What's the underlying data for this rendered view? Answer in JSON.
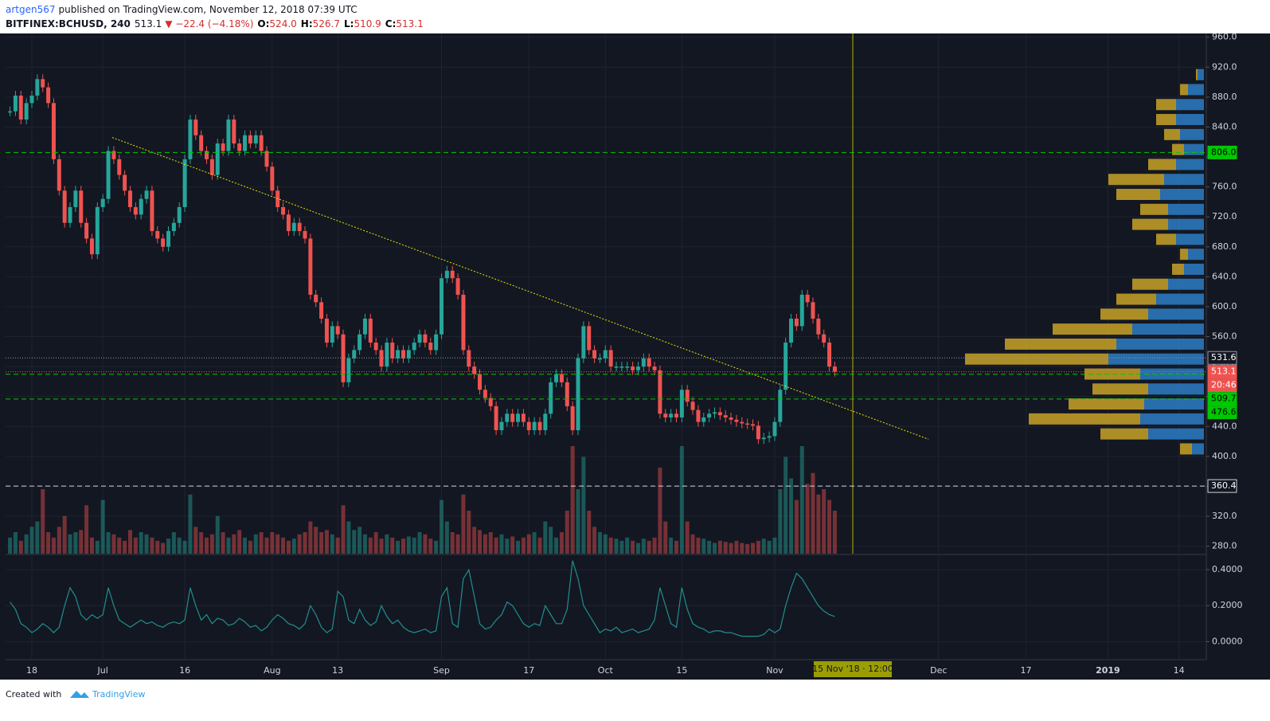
{
  "header": {
    "author": "artgen567",
    "published": "published on TradingView.com, November 12, 2018 07:39 UTC",
    "symbol": "BITFINEX:BCHUSD, 240",
    "last": "513.1",
    "change": "▼ −22.4 (−4.18%)",
    "ohlc": [
      {
        "key": "O:",
        "value": "524.0"
      },
      {
        "key": "H:",
        "value": "526.7"
      },
      {
        "key": "L:",
        "value": "510.9"
      },
      {
        "key": "C:",
        "value": "513.1"
      }
    ]
  },
  "footer": {
    "text": "Created with",
    "brand": "TradingView"
  },
  "chart_data": {
    "type": "candlestick",
    "up_color": "#26a69a",
    "down_color": "#ef5350",
    "categories": [
      null,
      null,
      null,
      null,
      "18",
      null,
      null,
      null,
      null,
      null,
      null,
      null,
      null,
      null,
      null,
      null,
      null,
      "Jul",
      null,
      null,
      null,
      null,
      null,
      null,
      null,
      null,
      null,
      null,
      null,
      null,
      null,
      null,
      "16",
      null,
      null,
      null,
      null,
      null,
      null,
      null,
      null,
      null,
      null,
      null,
      null,
      null,
      null,
      null,
      "Aug",
      null,
      null,
      null,
      null,
      null,
      null,
      null,
      null,
      null,
      null,
      null,
      "13",
      null,
      null,
      null,
      null,
      null,
      null,
      null,
      null,
      null,
      null,
      null,
      null,
      null,
      null,
      null,
      null,
      null,
      null,
      "Sep",
      null,
      null,
      null,
      null,
      null,
      null,
      null,
      null,
      null,
      null,
      null,
      null,
      null,
      null,
      null,
      "17",
      null,
      null,
      null,
      null,
      null,
      null,
      null,
      null,
      null,
      null,
      null,
      null,
      null,
      "Oct",
      null,
      null,
      null,
      null,
      null,
      null,
      null,
      null,
      null,
      null,
      null,
      null,
      null,
      "15",
      null,
      null,
      null,
      null,
      null,
      null,
      null,
      null,
      null,
      null,
      null,
      null,
      null,
      null,
      null,
      null,
      "Nov",
      null,
      null,
      null,
      null,
      null,
      null,
      null,
      null,
      null,
      null,
      null,
      null,
      null,
      null,
      null,
      null,
      null,
      null,
      null,
      null,
      null,
      null,
      null,
      null,
      null,
      null,
      null,
      null,
      null,
      "Dec",
      null,
      null,
      null,
      null,
      null,
      null,
      null,
      null,
      null,
      null,
      null,
      null,
      null,
      null,
      null,
      "17",
      null,
      null,
      null,
      null,
      null,
      null,
      null,
      null,
      null,
      null,
      null,
      null,
      null,
      null,
      "2019",
      null,
      null,
      null,
      null,
      null,
      null,
      null,
      null,
      null,
      null,
      null,
      null,
      "14",
      null,
      null
    ],
    "values": [
      861,
      882,
      850,
      872,
      882,
      904,
      893,
      872,
      797,
      755,
      712,
      733,
      755,
      712,
      691,
      670,
      733,
      744,
      808,
      797,
      776,
      755,
      733,
      723,
      744,
      755,
      701,
      691,
      680,
      701,
      712,
      733,
      797,
      850,
      829,
      808,
      797,
      776,
      818,
      808,
      850,
      818,
      808,
      829,
      818,
      829,
      808,
      787,
      755,
      733,
      723,
      701,
      712,
      701,
      691,
      616,
      606,
      584,
      552,
      574,
      563,
      499,
      531,
      542,
      563,
      584,
      552,
      542,
      520,
      552,
      531,
      542,
      531,
      542,
      552,
      563,
      552,
      542,
      563,
      638,
      648,
      638,
      616,
      542,
      520,
      510,
      489,
      478,
      467,
      435,
      446,
      457,
      446,
      457,
      446,
      435,
      446,
      435,
      457,
      499,
      510,
      499,
      467,
      435,
      531,
      574,
      542,
      531,
      531,
      542,
      520,
      520,
      520,
      520,
      515,
      520,
      531,
      520,
      515,
      457,
      452,
      457,
      452,
      489,
      473,
      462,
      446,
      452,
      457,
      459,
      455,
      452,
      449,
      446,
      444,
      443,
      441,
      423,
      425,
      427,
      446,
      489,
      552,
      584,
      574,
      616,
      606,
      584,
      563,
      552,
      520,
      513.1,
      null,
      null,
      null,
      null,
      null,
      null,
      null,
      null,
      null,
      null,
      null,
      null,
      null,
      null,
      null,
      null,
      null,
      null,
      null,
      null,
      null,
      null,
      null,
      null,
      null,
      null,
      null,
      null,
      null,
      null,
      null,
      null,
      null,
      null,
      null,
      null,
      null,
      null,
      null,
      null,
      null,
      null,
      null,
      null,
      null,
      null,
      null,
      null,
      null,
      null,
      null,
      null,
      null,
      null,
      null,
      null,
      null,
      null,
      null,
      null,
      null,
      null,
      null,
      null,
      null
    ],
    "volume": [
      15,
      20,
      12,
      18,
      25,
      30,
      60,
      20,
      15,
      25,
      35,
      18,
      20,
      22,
      45,
      15,
      12,
      50,
      20,
      18,
      15,
      12,
      22,
      15,
      20,
      18,
      15,
      12,
      10,
      14,
      20,
      15,
      12,
      55,
      25,
      20,
      15,
      18,
      35,
      20,
      15,
      18,
      22,
      15,
      12,
      18,
      20,
      15,
      20,
      18,
      15,
      12,
      14,
      18,
      20,
      30,
      25,
      20,
      22,
      18,
      15,
      45,
      30,
      22,
      25,
      18,
      15,
      20,
      14,
      18,
      15,
      12,
      14,
      16,
      15,
      20,
      18,
      14,
      12,
      50,
      30,
      20,
      18,
      55,
      40,
      25,
      22,
      18,
      20,
      15,
      18,
      14,
      16,
      12,
      15,
      18,
      20,
      15,
      30,
      25,
      15,
      20,
      40,
      100,
      60,
      90,
      40,
      25,
      20,
      18,
      15,
      14,
      12,
      15,
      12,
      10,
      14,
      12,
      15,
      80,
      30,
      15,
      12,
      100,
      30,
      18,
      15,
      14,
      12,
      10,
      12,
      11,
      10,
      12,
      10,
      9,
      10,
      12,
      14,
      12,
      15,
      60,
      90,
      70,
      50,
      100,
      65,
      75,
      55,
      60,
      50,
      40,
      null,
      null,
      null,
      null,
      null,
      null,
      null,
      null,
      null,
      null,
      null,
      null,
      null,
      null,
      null,
      null,
      null,
      null,
      null,
      null,
      null,
      null,
      null,
      null,
      null,
      null,
      null,
      null,
      null,
      null,
      null,
      null,
      null,
      null,
      null,
      null,
      null,
      null,
      null,
      null,
      null,
      null,
      null,
      null,
      null,
      null,
      null,
      null,
      null,
      null,
      null,
      null,
      null,
      null,
      null,
      null,
      null,
      null,
      null,
      null,
      null,
      null,
      null,
      null,
      null
    ],
    "ylim": [
      270,
      965
    ],
    "yticks": [
      {
        "value": 280,
        "label": "280.0"
      },
      {
        "value": 320,
        "label": "320.0"
      },
      {
        "value": 360,
        "label": "360.0"
      },
      {
        "value": 400,
        "label": "400.0"
      },
      {
        "value": 440,
        "label": "440.0"
      },
      {
        "value": 480,
        "label": "480.0"
      },
      {
        "value": 520,
        "label": "520.0"
      },
      {
        "value": 560,
        "label": "560.0"
      },
      {
        "value": 600,
        "label": "600.0"
      },
      {
        "value": 640,
        "label": "640.0"
      },
      {
        "value": 680,
        "label": "680.0"
      },
      {
        "value": 720,
        "label": "720.0"
      },
      {
        "value": 760,
        "label": "760.0"
      },
      {
        "value": 800,
        "label": "800.0"
      },
      {
        "value": 840,
        "label": "840.0"
      },
      {
        "value": 880,
        "label": "880.0"
      },
      {
        "value": 920,
        "label": "920.0"
      },
      {
        "value": 960,
        "label": "960.0"
      }
    ],
    "grid": true,
    "trendline": [
      826,
      423
    ],
    "trendline_color": "#e6e600",
    "cursor_label": "15 Nov '18 · 12:00",
    "cursor_color": "#b5b500",
    "levels": [
      {
        "value": 806,
        "label": "806.0",
        "color": "#00c800",
        "text_color": "#000000",
        "style": "dashed"
      },
      {
        "value": 531.6,
        "color": "#9598a1",
        "text_color": "#ffffff",
        "style": "dotted"
      },
      {
        "value": 513.1,
        "color": "#ef5350",
        "text_color": "#ffffff",
        "style": "dotted",
        "countdown": "20:46"
      },
      {
        "value": 509.7,
        "color": "#00c800",
        "text_color": "#000000",
        "style": "dashed"
      },
      {
        "value": 476.6,
        "color": "#00c800",
        "text_color": "#000000",
        "style": "dashed"
      },
      {
        "value": 360.4,
        "color": "#d1d4dc",
        "text_color": "#ffffff",
        "style": "dashed"
      }
    ],
    "volume_profile": {
      "prices": [
        410,
        430,
        450,
        470,
        490,
        510,
        530,
        550,
        570,
        590,
        610,
        630,
        650,
        670,
        690,
        710,
        730,
        750,
        770,
        790,
        810,
        830,
        850,
        870,
        890,
        910
      ],
      "up": [
        15,
        70,
        80,
        75,
        70,
        80,
        120,
        110,
        90,
        70,
        60,
        45,
        25,
        20,
        35,
        45,
        45,
        55,
        50,
        35,
        25,
        30,
        35,
        35,
        20,
        8
      ],
      "down": [
        15,
        60,
        140,
        95,
        70,
        70,
        180,
        140,
        100,
        60,
        50,
        45,
        15,
        10,
        25,
        45,
        35,
        55,
        70,
        35,
        15,
        20,
        25,
        25,
        10,
        2
      ],
      "up_color": "#2d7cc4",
      "down_color": "#c9a227"
    },
    "indicator": {
      "color": "#1f8f8f",
      "ylim": [
        -0.1,
        0.48
      ],
      "yticks": [
        {
          "value": 0.4,
          "label": "0.4000"
        },
        {
          "value": 0.2,
          "label": "0.2000"
        },
        {
          "value": 0,
          "label": "0.0000"
        }
      ],
      "values": [
        0.22,
        0.18,
        0.1,
        0.08,
        0.05,
        0.07,
        0.1,
        0.08,
        0.05,
        0.08,
        0.2,
        0.3,
        0.25,
        0.15,
        0.12,
        0.15,
        0.13,
        0.15,
        0.3,
        0.2,
        0.12,
        0.1,
        0.08,
        0.1,
        0.12,
        0.1,
        0.11,
        0.09,
        0.08,
        0.1,
        0.11,
        0.1,
        0.12,
        0.3,
        0.2,
        0.12,
        0.15,
        0.1,
        0.13,
        0.12,
        0.09,
        0.1,
        0.13,
        0.11,
        0.08,
        0.09,
        0.06,
        0.08,
        0.12,
        0.15,
        0.13,
        0.1,
        0.09,
        0.07,
        0.1,
        0.2,
        0.15,
        0.08,
        0.05,
        0.07,
        0.28,
        0.25,
        0.12,
        0.1,
        0.18,
        0.12,
        0.09,
        0.11,
        0.2,
        0.14,
        0.1,
        0.12,
        0.08,
        0.06,
        0.05,
        0.06,
        0.07,
        0.05,
        0.06,
        0.25,
        0.3,
        0.1,
        0.08,
        0.35,
        0.4,
        0.25,
        0.1,
        0.07,
        0.08,
        0.12,
        0.15,
        0.22,
        0.2,
        0.15,
        0.1,
        0.08,
        0.1,
        0.09,
        0.2,
        0.15,
        0.1,
        0.1,
        0.18,
        0.45,
        0.35,
        0.2,
        0.15,
        0.1,
        0.05,
        0.07,
        0.06,
        0.08,
        0.05,
        0.06,
        0.07,
        0.05,
        0.06,
        0.07,
        0.12,
        0.3,
        0.2,
        0.1,
        0.08,
        0.3,
        0.18,
        0.1,
        0.08,
        0.07,
        0.05,
        0.06,
        0.06,
        0.05,
        0.05,
        0.04,
        0.03,
        0.03,
        0.03,
        0.03,
        0.04,
        0.07,
        0.05,
        0.07,
        0.2,
        0.3,
        0.38,
        0.35,
        0.3,
        0.25,
        0.2,
        0.17,
        0.15,
        0.14,
        null,
        null,
        null,
        null,
        null,
        null,
        null,
        null,
        null,
        null,
        null,
        null,
        null,
        null,
        null,
        null,
        null,
        null,
        null,
        null,
        null,
        null,
        null,
        null,
        null,
        null,
        null,
        null,
        null,
        null,
        null,
        null,
        null,
        null,
        null,
        null,
        null,
        null,
        null,
        null,
        null,
        null,
        null,
        null,
        null,
        null,
        null,
        null,
        null,
        null,
        null,
        null,
        null,
        null,
        null,
        null,
        null,
        null,
        null,
        null,
        null,
        null,
        null,
        null,
        null
      ]
    }
  }
}
